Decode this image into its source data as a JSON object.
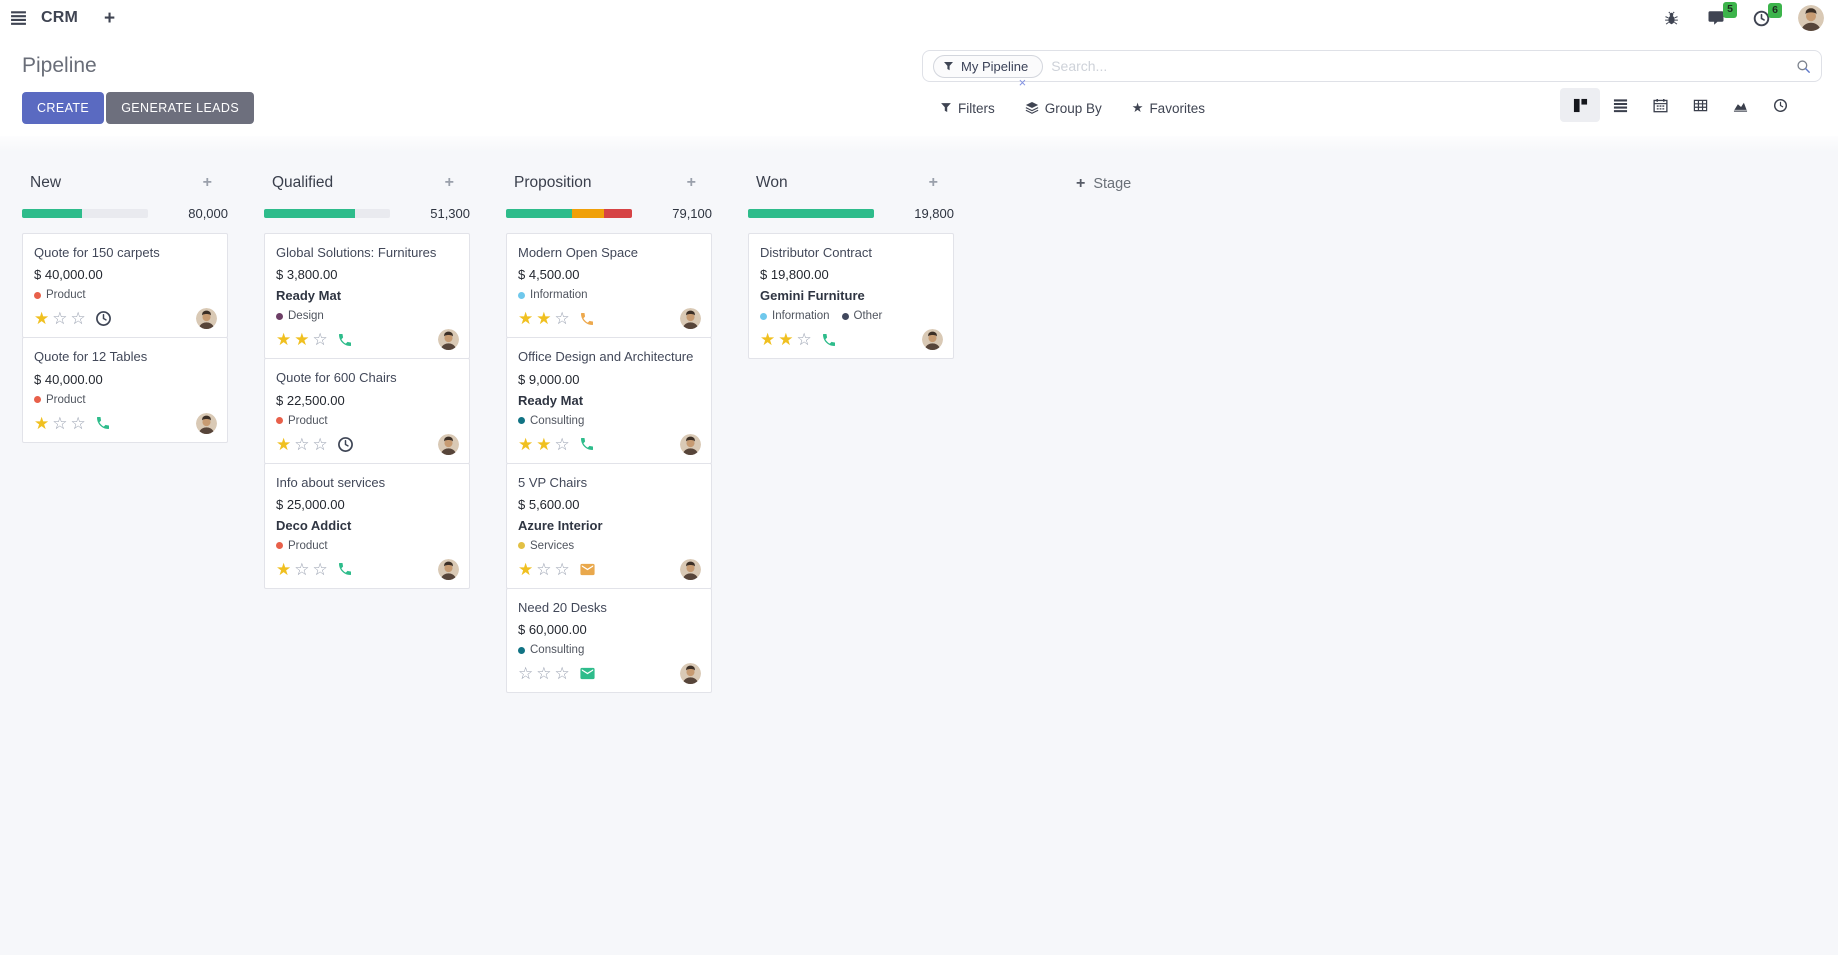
{
  "navbar": {
    "app": "CRM",
    "messages_badge": "5",
    "activities_badge": "6"
  },
  "control_panel": {
    "title": "Pipeline",
    "create_label": "CREATE",
    "generate_leads_label": "GENERATE LEADS",
    "search": {
      "facet_label": "My Pipeline",
      "placeholder": "Search...",
      "remove_facet": "×"
    },
    "filters_label": "Filters",
    "group_by_label": "Group By",
    "favorites_label": "Favorites"
  },
  "colors": {
    "primary": "#5a6ac1",
    "secondary": "#6d6f7d",
    "progress_green": "#2ebc8b",
    "progress_orange": "#f0a009",
    "progress_red": "#d64345",
    "progress_empty": "#e9eaef",
    "star_gold": "#f0c020",
    "badge_green": "#3cb44b"
  },
  "kanban": {
    "add_stage_label": "Stage",
    "max_stars": 3,
    "columns": [
      {
        "name": "New",
        "total": "80,000",
        "progress": [
          {
            "name": "success",
            "color": "#2ebc8b",
            "pct": 48
          },
          {
            "name": "empty",
            "color": "#e9eaef",
            "pct": 52
          }
        ],
        "cards": [
          {
            "title": "Quote for 150 carpets",
            "amount": "$ 40,000.00",
            "partner": null,
            "tags": [
              {
                "label": "Product",
                "color": "#e8604a"
              }
            ],
            "stars": 1,
            "activity": {
              "icon": "clock",
              "color": "#3e4555"
            }
          },
          {
            "title": "Quote for 12 Tables",
            "amount": "$ 40,000.00",
            "partner": null,
            "tags": [
              {
                "label": "Product",
                "color": "#e8604a"
              }
            ],
            "stars": 1,
            "activity": {
              "icon": "phone",
              "color": "#2ebc8b"
            }
          }
        ]
      },
      {
        "name": "Qualified",
        "total": "51,300",
        "progress": [
          {
            "name": "success",
            "color": "#2ebc8b",
            "pct": 72
          },
          {
            "name": "empty",
            "color": "#e9eaef",
            "pct": 28
          }
        ],
        "cards": [
          {
            "title": "Global Solutions: Furnitures",
            "amount": "$ 3,800.00",
            "partner": "Ready Mat",
            "tags": [
              {
                "label": "Design",
                "color": "#6d3f66"
              }
            ],
            "stars": 2,
            "activity": {
              "icon": "phone",
              "color": "#2ebc8b"
            }
          },
          {
            "title": "Quote for 600 Chairs",
            "amount": "$ 22,500.00",
            "partner": null,
            "tags": [
              {
                "label": "Product",
                "color": "#e8604a"
              }
            ],
            "stars": 1,
            "activity": {
              "icon": "clock",
              "color": "#3e4555"
            }
          },
          {
            "title": "Info about services",
            "amount": "$ 25,000.00",
            "partner": "Deco Addict",
            "tags": [
              {
                "label": "Product",
                "color": "#e8604a"
              }
            ],
            "stars": 1,
            "activity": {
              "icon": "phone",
              "color": "#2ebc8b"
            }
          }
        ]
      },
      {
        "name": "Proposition",
        "total": "79,100",
        "progress": [
          {
            "name": "success",
            "color": "#2ebc8b",
            "pct": 52
          },
          {
            "name": "warning",
            "color": "#f0a009",
            "pct": 26
          },
          {
            "name": "danger",
            "color": "#d64345",
            "pct": 22
          }
        ],
        "cards": [
          {
            "title": "Modern Open Space",
            "amount": "$ 4,500.00",
            "partner": null,
            "tags": [
              {
                "label": "Information",
                "color": "#6fc8ec"
              }
            ],
            "stars": 2,
            "activity": {
              "icon": "phone",
              "color": "#eda94e"
            }
          },
          {
            "title": "Office Design and Architecture",
            "amount": "$ 9,000.00",
            "partner": "Ready Mat",
            "tags": [
              {
                "label": "Consulting",
                "color": "#117384"
              }
            ],
            "stars": 2,
            "activity": {
              "icon": "phone",
              "color": "#2ebc8b"
            }
          },
          {
            "title": "5 VP Chairs",
            "amount": "$ 5,600.00",
            "partner": "Azure Interior",
            "tags": [
              {
                "label": "Services",
                "color": "#e2c044"
              }
            ],
            "stars": 1,
            "activity": {
              "icon": "envelope",
              "color": "#e9a84c"
            }
          },
          {
            "title": "Need 20 Desks",
            "amount": "$ 60,000.00",
            "partner": null,
            "tags": [
              {
                "label": "Consulting",
                "color": "#117384"
              }
            ],
            "stars": 0,
            "activity": {
              "icon": "envelope",
              "color": "#2ebc8b"
            }
          }
        ]
      },
      {
        "name": "Won",
        "total": "19,800",
        "progress": [
          {
            "name": "success",
            "color": "#2ebc8b",
            "pct": 100
          }
        ],
        "cards": [
          {
            "title": "Distributor Contract",
            "amount": "$ 19,800.00",
            "partner": "Gemini Furniture",
            "tags": [
              {
                "label": "Information",
                "color": "#6fc8ec"
              },
              {
                "label": "Other",
                "color": "#41485e"
              }
            ],
            "stars": 2,
            "activity": {
              "icon": "phone",
              "color": "#2ebc8b"
            }
          }
        ]
      }
    ]
  }
}
